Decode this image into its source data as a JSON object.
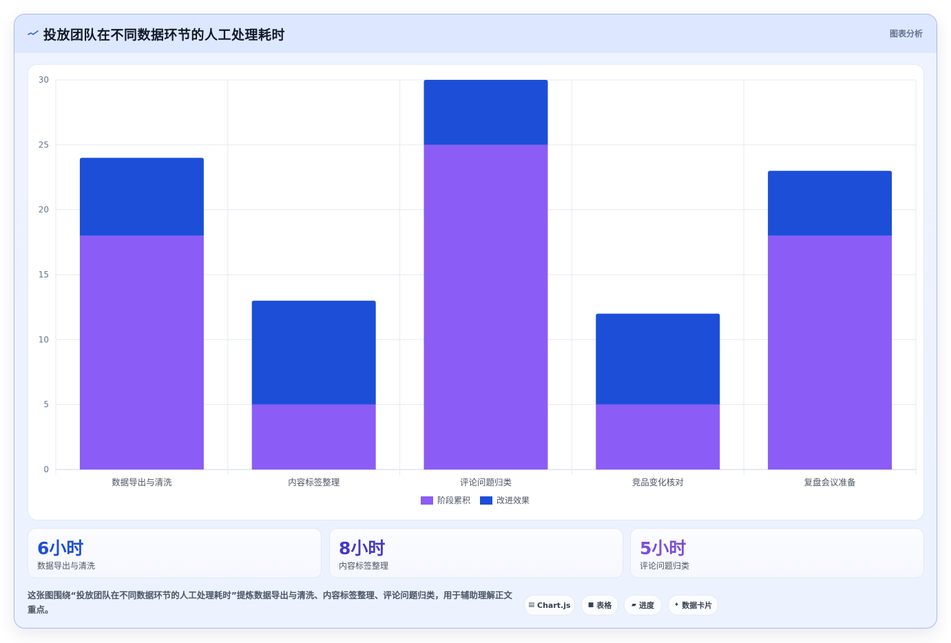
{
  "header": {
    "title": "投放团队在不同数据环节的人工处理耗时",
    "tag": "图表分析"
  },
  "chart_data": {
    "type": "bar",
    "stacked": true,
    "categories": [
      "数据导出与清洗",
      "内容标签整理",
      "评论问题归类",
      "竞品变化核对",
      "复盘会议准备"
    ],
    "series": [
      {
        "name": "阶段累积",
        "color": "#8b5cf6",
        "values": [
          18,
          5,
          25,
          5,
          18
        ]
      },
      {
        "name": "改进效果",
        "color": "#1d4ed8",
        "values": [
          6,
          8,
          5,
          7,
          5
        ]
      }
    ],
    "ylim": [
      0,
      30
    ],
    "yticks": [
      0,
      5,
      10,
      15,
      20,
      25,
      30
    ],
    "grid": true,
    "legend": "bottom"
  },
  "stats": [
    {
      "value": "6小时",
      "label": "数据导出与清洗",
      "color": "#1d4ed8"
    },
    {
      "value": "8小时",
      "label": "内容标签整理",
      "color": "#4338ca"
    },
    {
      "value": "5小时",
      "label": "评论问题归类",
      "color": "#7c4ddc"
    }
  ],
  "footer": {
    "description": "这张图围绕“投放团队在不同数据环节的人工处理耗时”提炼数据导出与清洗、内容标签整理、评论问题归类，用于辅助理解正文重点。",
    "chips": [
      {
        "icon": "▤",
        "label": "Chart.js",
        "icon_name": "chart-icon"
      },
      {
        "icon": "■",
        "label": "表格",
        "icon_name": "table-icon"
      },
      {
        "icon": "▰",
        "label": "进度",
        "icon_name": "progress-icon"
      },
      {
        "icon": "✦",
        "label": "数据卡片",
        "icon_name": "sparkle-icon"
      }
    ]
  }
}
